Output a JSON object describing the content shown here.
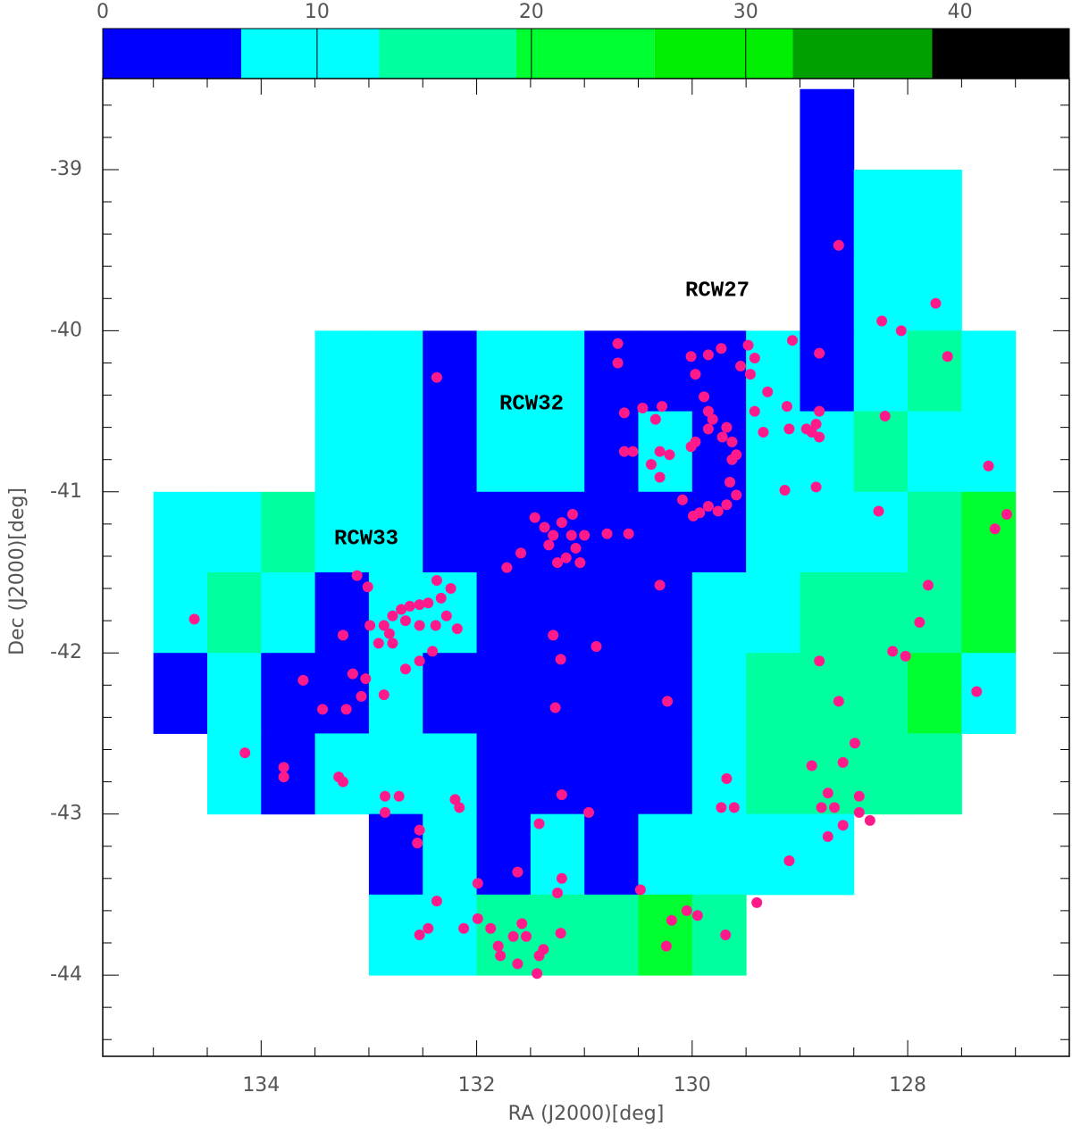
{
  "chart_data": {
    "type": "scatter",
    "x_label": "RA (J2000)[deg]",
    "y_label": "Dec (J2000)[deg]",
    "xlim": [
      135.47,
      126.5
    ],
    "ylim": [
      -44.504,
      -38.435
    ],
    "xticks": [
      134,
      132,
      130,
      128
    ],
    "yticks": [
      -44,
      -43,
      -42,
      -41,
      -40,
      -39
    ],
    "xminorticks": [
      135,
      134.5,
      133.5,
      133,
      132.5,
      131.5,
      131,
      130.5,
      129.5,
      129,
      128.5,
      127.5,
      127
    ],
    "yminorticks": [
      -44.4,
      -44.2,
      -43.8,
      -43.6,
      -43.4,
      -43.2,
      -42.8,
      -42.6,
      -42.4,
      -42.2,
      -41.8,
      -41.6,
      -41.4,
      -41.2,
      -40.8,
      -40.6,
      -40.4,
      -40.2,
      -39.8,
      -39.6,
      -39.4,
      -39.2,
      -38.8,
      -38.6
    ],
    "colorbar": {
      "lim": [
        0,
        45.1
      ],
      "ticks": [
        0,
        10,
        20,
        30,
        40
      ],
      "bounds": [
        0,
        6.46,
        12.9,
        19.3,
        25.75,
        32.2,
        38.7,
        45.1
      ],
      "colors": [
        "#0000ff",
        "#00ffff",
        "#00ff9f",
        "#00ff30",
        "#00ee00",
        "#00a000",
        "#000000"
      ]
    },
    "heatmap": {
      "x_edges": [
        135,
        134.5,
        134,
        133.5,
        133,
        132.5,
        132,
        131.5,
        131,
        130.5,
        130,
        129.5,
        129,
        128.5,
        128,
        127.5,
        127
      ],
      "y_edges": [
        -38.5,
        -39,
        -39.5,
        -40,
        -40.5,
        -41,
        -41.5,
        -42,
        -42.5,
        -43,
        -43.5,
        -44
      ],
      "values": [
        [
          null,
          null,
          null,
          null,
          null,
          null,
          null,
          null,
          null,
          null,
          null,
          null,
          3,
          null,
          null,
          null
        ],
        [
          null,
          null,
          null,
          null,
          null,
          null,
          null,
          null,
          null,
          null,
          null,
          null,
          3,
          10,
          10,
          null
        ],
        [
          null,
          null,
          null,
          null,
          null,
          null,
          null,
          null,
          null,
          null,
          null,
          null,
          3,
          10,
          10,
          null
        ],
        [
          null,
          null,
          null,
          10,
          10,
          3,
          10,
          10,
          3,
          3,
          3,
          10,
          3,
          10,
          16,
          10
        ],
        [
          null,
          null,
          null,
          10,
          10,
          3,
          10,
          10,
          3,
          10,
          3,
          10,
          10,
          16,
          10,
          10
        ],
        [
          10,
          10,
          16,
          10,
          10,
          3,
          3,
          3,
          3,
          3,
          3,
          10,
          10,
          10,
          16,
          22
        ],
        [
          10,
          16,
          10,
          3,
          10,
          10,
          3,
          3,
          3,
          3,
          10,
          10,
          16,
          16,
          16,
          22
        ],
        [
          3,
          10,
          3,
          3,
          10,
          3,
          3,
          3,
          3,
          3,
          10,
          16,
          16,
          16,
          22,
          10
        ],
        [
          null,
          10,
          3,
          10,
          10,
          10,
          3,
          3,
          3,
          3,
          10,
          16,
          16,
          16,
          16,
          null
        ],
        [
          null,
          null,
          null,
          null,
          3,
          10,
          3,
          10,
          3,
          10,
          10,
          10,
          10,
          null,
          null,
          null
        ],
        [
          null,
          null,
          null,
          null,
          10,
          10,
          16,
          16,
          16,
          22,
          16,
          null,
          null,
          null,
          null,
          null
        ]
      ]
    },
    "points": {
      "color": "#ff1a8c",
      "x": [
        134.62,
        134.15,
        133.79,
        133.79,
        133.28,
        133.24,
        133.61,
        133.43,
        133.24,
        133.11,
        133.01,
        133.15,
        133.07,
        133.03,
        133.21,
        132.86,
        132.99,
        132.91,
        132.81,
        132.78,
        132.7,
        132.62,
        132.53,
        132.45,
        132.37,
        132.33,
        132.24,
        132.28,
        132.38,
        132.53,
        132.66,
        132.78,
        132.86,
        132.18,
        132.53,
        132.66,
        132.41,
        132.85,
        132.72,
        132.85,
        132.53,
        132.55,
        132.37,
        131.46,
        131.37,
        131.29,
        131.33,
        131.21,
        131.12,
        131.08,
        131.17,
        131.25,
        131.04,
        131.0,
        131.11,
        131.59,
        131.72,
        130.79,
        130.59,
        131.29,
        131.22,
        130.89,
        131.27,
        132.2,
        132.16,
        131.21,
        130.96,
        131.42,
        131.62,
        131.21,
        131.25,
        131.99,
        130.48,
        130.23,
        130.3,
        132.37,
        132.45,
        132.53,
        132.12,
        131.99,
        131.87,
        131.8,
        131.78,
        131.66,
        131.58,
        131.54,
        131.62,
        131.42,
        131.38,
        131.44,
        131.22,
        130.69,
        130.69,
        130.46,
        130.63,
        130.34,
        130.63,
        130.55,
        130.38,
        130.3,
        130.21,
        130.3,
        130.09,
        130.28,
        130.01,
        129.97,
        129.85,
        129.73,
        129.48,
        129.55,
        129.46,
        129.42,
        129.89,
        129.85,
        129.81,
        129.85,
        130.01,
        129.97,
        129.72,
        129.68,
        129.63,
        129.59,
        129.42,
        129.34,
        129.63,
        129.65,
        129.59,
        129.68,
        129.76,
        129.85,
        129.93,
        129.99,
        129.3,
        129.12,
        129.07,
        128.82,
        128.82,
        129.1,
        128.94,
        128.89,
        128.82,
        128.85,
        129.14,
        128.85,
        128.64,
        128.24,
        128.06,
        127.74,
        127.63,
        128.21,
        127.25,
        127.08,
        127.19,
        128.27,
        127.81,
        127.89,
        128.14,
        128.02,
        127.36,
        128.82,
        128.64,
        128.49,
        128.6,
        128.89,
        128.74,
        128.8,
        128.68,
        128.45,
        128.45,
        128.35,
        128.74,
        128.6,
        129.1,
        129.4,
        129.61,
        129.68,
        129.73,
        130.19,
        130.05,
        129.95,
        129.69,
        130.24
      ],
      "y": [
        -41.79,
        -42.62,
        -42.71,
        -42.77,
        -42.77,
        -42.8,
        -42.17,
        -42.35,
        -41.89,
        -41.52,
        -41.59,
        -42.13,
        -42.27,
        -42.16,
        -42.35,
        -42.26,
        -41.83,
        -41.94,
        -41.88,
        -41.77,
        -41.73,
        -41.71,
        -41.7,
        -41.69,
        -41.55,
        -41.66,
        -41.6,
        -41.77,
        -41.83,
        -41.83,
        -41.8,
        -41.94,
        -41.83,
        -41.85,
        -42.05,
        -42.1,
        -41.99,
        -42.89,
        -42.89,
        -42.99,
        -43.1,
        -43.18,
        -40.29,
        -41.16,
        -41.22,
        -41.27,
        -41.33,
        -41.19,
        -41.27,
        -41.35,
        -41.41,
        -41.44,
        -41.44,
        -41.27,
        -41.14,
        -41.38,
        -41.47,
        -41.26,
        -41.26,
        -41.89,
        -42.04,
        -41.96,
        -42.34,
        -42.91,
        -42.96,
        -42.88,
        -42.99,
        -43.06,
        -43.36,
        -43.4,
        -43.49,
        -43.43,
        -43.47,
        -42.3,
        -41.58,
        -43.54,
        -43.71,
        -43.75,
        -43.71,
        -43.65,
        -43.71,
        -43.82,
        -43.88,
        -43.76,
        -43.68,
        -43.76,
        -43.93,
        -43.88,
        -43.84,
        -43.99,
        -43.74,
        -40.08,
        -40.2,
        -40.48,
        -40.51,
        -40.55,
        -40.75,
        -40.75,
        -40.83,
        -40.75,
        -40.77,
        -40.91,
        -41.05,
        -40.47,
        -40.16,
        -40.27,
        -40.15,
        -40.11,
        -40.09,
        -40.22,
        -40.27,
        -40.17,
        -40.41,
        -40.5,
        -40.55,
        -40.61,
        -40.72,
        -40.69,
        -40.66,
        -40.6,
        -40.69,
        -40.77,
        -40.5,
        -40.63,
        -40.8,
        -40.94,
        -41.02,
        -41.08,
        -41.12,
        -41.09,
        -41.13,
        -41.15,
        -40.38,
        -40.47,
        -40.06,
        -40.14,
        -40.5,
        -40.61,
        -40.61,
        -40.63,
        -40.66,
        -40.58,
        -40.99,
        -40.97,
        -39.47,
        -39.94,
        -40.0,
        -39.83,
        -40.16,
        -40.53,
        -40.84,
        -41.14,
        -41.23,
        -41.12,
        -41.58,
        -41.81,
        -41.99,
        -42.02,
        -42.24,
        -42.05,
        -42.3,
        -42.56,
        -42.68,
        -42.7,
        -42.87,
        -42.96,
        -42.96,
        -42.89,
        -42.99,
        -43.04,
        -43.14,
        -43.07,
        -43.29,
        -43.55,
        -42.96,
        -42.78,
        -42.96,
        -43.66,
        -43.6,
        -43.63,
        -43.75,
        -43.82
      ]
    },
    "annotations": [
      "RCW27",
      "RCW32",
      "RCW33"
    ]
  }
}
